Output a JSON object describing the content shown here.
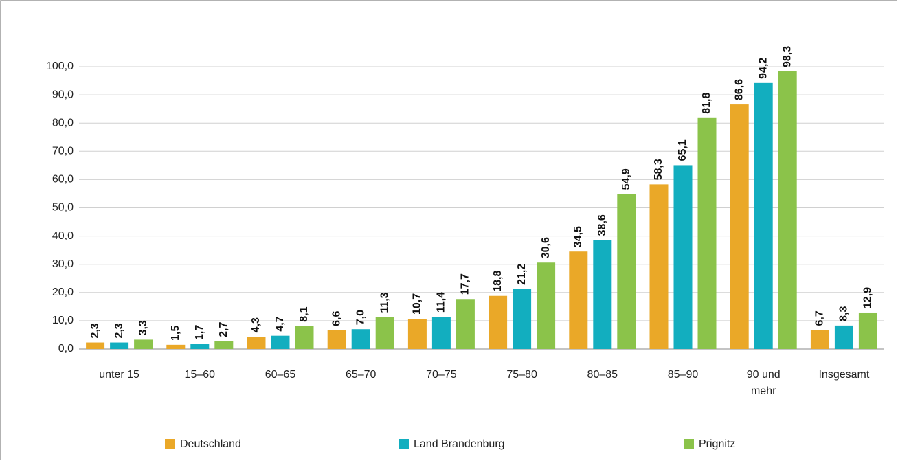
{
  "chart_data": {
    "type": "bar",
    "categories": [
      "unter 15",
      "15–60",
      "60–65",
      "65–70",
      "70–75",
      "75–80",
      "80–85",
      "85–90",
      "90 und mehr",
      "Insgesamt"
    ],
    "series": [
      {
        "name": "Deutschland",
        "color": "#eaa828",
        "values": [
          2.3,
          1.5,
          4.3,
          6.6,
          10.7,
          18.8,
          34.5,
          58.3,
          86.6,
          6.7
        ],
        "value_labels": [
          "2,3",
          "1,5",
          "4,3",
          "6,6",
          "10,7",
          "18,8",
          "34,5",
          "58,3",
          "86,6",
          "6,7"
        ]
      },
      {
        "name": "Land Brandenburg",
        "color": "#12aebf",
        "values": [
          2.3,
          1.7,
          4.7,
          7.0,
          11.4,
          21.2,
          38.6,
          65.1,
          94.2,
          8.3
        ],
        "value_labels": [
          "2,3",
          "1,7",
          "4,7",
          "7,0",
          "11,4",
          "21,2",
          "38,6",
          "65,1",
          "94,2",
          "8,3"
        ]
      },
      {
        "name": "Prignitz",
        "color": "#8bc34a",
        "values": [
          3.3,
          2.7,
          8.1,
          11.3,
          17.7,
          30.6,
          54.9,
          81.8,
          98.3,
          12.9
        ],
        "value_labels": [
          "3,3",
          "2,7",
          "8,1",
          "11,3",
          "17,7",
          "30,6",
          "54,9",
          "81,8",
          "98,3",
          "12,9"
        ]
      }
    ],
    "ylim": [
      0,
      100
    ],
    "yticks": [
      {
        "value": 0,
        "label": "0,0"
      },
      {
        "value": 10,
        "label": "10,0"
      },
      {
        "value": 20,
        "label": "20,0"
      },
      {
        "value": 30,
        "label": "30,0"
      },
      {
        "value": 40,
        "label": "40,0"
      },
      {
        "value": 50,
        "label": "50,0"
      },
      {
        "value": 60,
        "label": "60,0"
      },
      {
        "value": 70,
        "label": "70,0"
      },
      {
        "value": 80,
        "label": "80,0"
      },
      {
        "value": 90,
        "label": "90,0"
      },
      {
        "value": 100,
        "label": "100,0"
      }
    ],
    "grid": true,
    "legend": "bottom"
  }
}
